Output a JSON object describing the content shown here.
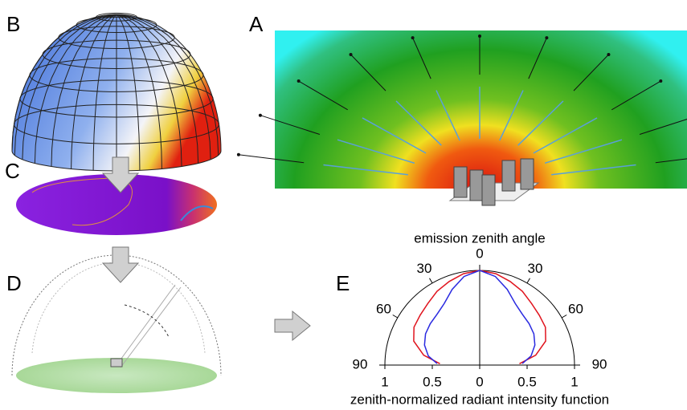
{
  "panels": {
    "a": "A",
    "b": "B",
    "c": "C",
    "d": "D",
    "e": "E"
  },
  "chart_data": {
    "type": "polar",
    "title": "emission zenith angle",
    "xlabel": "zenith-normalized radiant intensity function",
    "x": [
      0,
      10,
      20,
      30,
      40,
      50,
      60,
      70,
      80,
      88
    ],
    "series": [
      {
        "color": "#e0141e",
        "values": [
          1.0,
          0.98,
          0.94,
          0.9,
          0.85,
          0.82,
          0.8,
          0.74,
          0.6,
          0.42
        ]
      },
      {
        "color": "#2a2ae0",
        "values": [
          1.0,
          0.95,
          0.85,
          0.75,
          0.7,
          0.68,
          0.66,
          0.62,
          0.55,
          0.45
        ]
      }
    ],
    "angleticks": [
      {
        "value": -90,
        "label": "90"
      },
      {
        "value": -60,
        "label": "60"
      },
      {
        "value": -30,
        "label": "30"
      },
      0,
      30,
      60,
      90
    ],
    "rticks": [
      {
        "value": -1,
        "label": "1"
      },
      {
        "value": -0.5,
        "label": "0.5"
      },
      0,
      0.5,
      1
    ],
    "rlim": [
      0,
      1
    ]
  }
}
